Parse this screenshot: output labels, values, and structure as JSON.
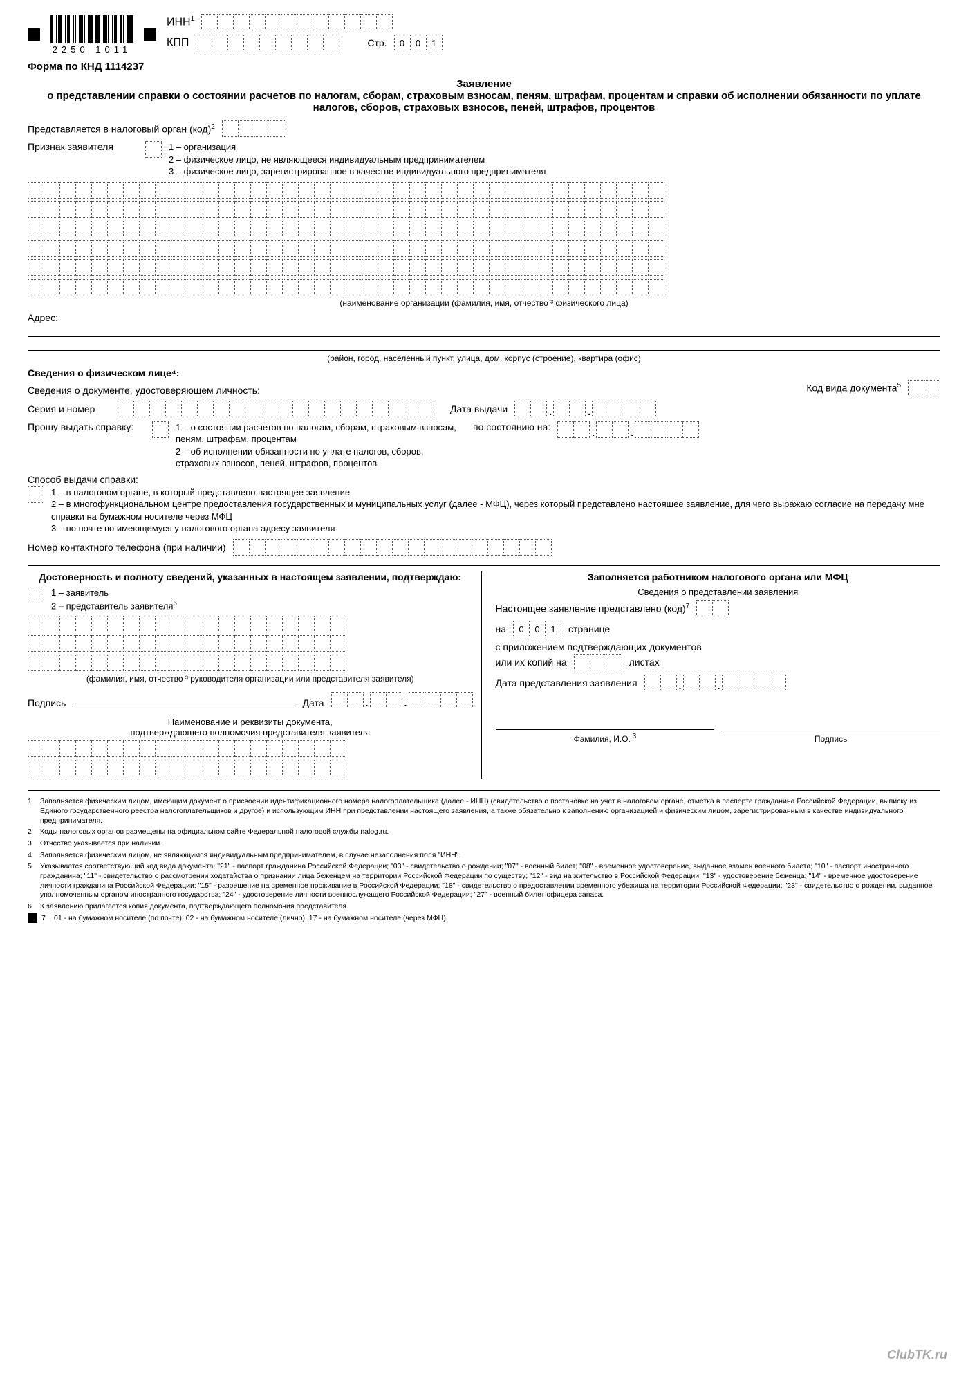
{
  "header": {
    "barcode_text": "2250 1011",
    "inn_label": "ИНН",
    "kpp_label": "КПП",
    "page_label": "Стр.",
    "page_value": [
      "0",
      "0",
      "1"
    ],
    "form_code": "Форма по КНД 1114237"
  },
  "title": "Заявление\nо представлении справки о состоянии расчетов по налогам, сборам, страховым взносам, пеням, штрафам, процентам и справки об исполнении обязанности по уплате налогов, сборов, страховых взносов, пеней, штрафов, процентов",
  "org_code_label": "Представляется в налоговый орган (код)",
  "applicant_type": {
    "label": "Признак заявителя",
    "options": [
      "1 – организация",
      "2 – физическое лицо, не являющееся индивидуальным предпринимателем",
      "3 – физическое лицо, зарегистрированное в качестве индивидуального предпринимателя"
    ]
  },
  "name_note": "(наименование организации (фамилия, имя, отчество ³ физического лица)",
  "address_label": "Адрес:",
  "address_note": "(район, город, населенный пункт, улица, дом, корпус (строение), квартира (офис)",
  "person_section": "Сведения о физическом лице⁴:",
  "id_doc_label": "Сведения о документе, удостоверяющем личность:",
  "doc_code_label": "Код вида документа",
  "series_label": "Серия и номер",
  "issue_date_label": "Дата выдачи",
  "request_label": "Прошу выдать справку:",
  "request_options": [
    "1 – о состоянии расчетов по налогам, сборам, страховым взносам, пеням, штрафам, процентам",
    "2 – об исполнении обязанности по уплате налогов, сборов, страховых взносов, пеней, штрафов, процентов"
  ],
  "as_of_label": "по состоянию на:",
  "delivery_label": "Способ выдачи справки:",
  "delivery_options": [
    "1 – в налоговом органе, в который представлено настоящее заявление",
    "2 – в многофункциональном центре предоставления государственных и муниципальных услуг (далее - МФЦ), через который представлено настоящее заявление, для чего выражаю согласие на передачу мне справки на бумажном носителе через МФЦ",
    "3 – по почте по имеющемуся у налогового органа адресу заявителя"
  ],
  "phone_label": "Номер контактного телефона (при наличии)",
  "left_col": {
    "title": "Достоверность и полноту сведений, указанных в настоящем заявлении, подтверждаю:",
    "opts": [
      "1 – заявитель",
      "2 – представитель заявителя"
    ],
    "fio_note": "(фамилия, имя, отчество ³  руководителя организации или представителя заявителя)",
    "sig_label": "Подпись",
    "date_label": "Дата",
    "doc_title": "Наименование и реквизиты документа,\nподтверждающего полномочия представителя заявителя"
  },
  "right_col": {
    "title": "Заполняется работником налогового органа или МФЦ",
    "subtitle": "Сведения о представлении заявления",
    "submitted_label": "Настоящее заявление представлено (код)",
    "on_label": "на",
    "pages_value": [
      "0",
      "0",
      "1"
    ],
    "pages_word": "странице",
    "attach_label": "с приложением подтверждающих документов",
    "or_copies": "или их копий на",
    "sheets_word": "листах",
    "submit_date": "Дата представления заявления",
    "fio_label": "Фамилия, И.О.",
    "sig_label": "Подпись"
  },
  "footnotes": [
    "Заполняется физическим лицом, имеющим документ о присвоении идентификационного номера налогоплательщика (далее - ИНН) (свидетельство о постановке на учет в налоговом органе, отметка в паспорте гражданина Российской Федерации, выписку из Единого государственного реестра налогоплательщиков и другое) и использующим ИНН при представлении настоящего заявления, а также обязательно к заполнению организацией и физическим лицом, зарегистрированным в качестве индивидуального предпринимателя.",
    "Коды налоговых органов размещены на официальном сайте Федеральной налоговой службы nalog.ru.",
    "Отчество указывается при наличии.",
    "Заполняется физическим лицом, не являющимся индивидуальным предпринимателем, в случае незаполнения поля \"ИНН\".",
    "Указывается соответствующий код вида документа: \"21\" - паспорт гражданина Российской Федерации; \"03\" - свидетельство о рождении; \"07\" - военный билет; \"08\" - временное удостоверение, выданное взамен военного билета; \"10\" - паспорт иностранного гражданина; \"11\" - свидетельство о рассмотрении ходатайства о признании лица беженцем на территории Российской Федерации по существу; \"12\" - вид на жительство в Российской Федерации; \"13\" - удостоверение беженца; \"14\" - временное удостоверение личности гражданина Российской Федерации; \"15\" - разрешение на временное проживание в Российской Федерации; \"18\" - свидетельство о предоставлении временного убежища на территории Российской Федерации; \"23\" - свидетельство о рождении, выданное уполномоченным органом иностранного государства; \"24\" - удостоверение личности военнослужащего Российской Федерации; \"27\" - военный билет офицера запаса.",
    "К заявлению прилагается копия документа, подтверждающего полномочия представителя.",
    "01 - на бумажном носителе (по почте); 02 - на бумажном носителе (лично); 17 - на бумажном носителе (через МФЦ)."
  ],
  "watermark": "ClubTK.ru",
  "cell_counts": {
    "inn": 12,
    "kpp": 9,
    "org_code": 4,
    "applicant": 1,
    "name_row": 40,
    "doc_code": 2,
    "series": 20,
    "date8": 8,
    "request": 1,
    "delivery": 1,
    "phone": 20,
    "confirm": 1,
    "fio_row": 20,
    "pages3": 3,
    "sheets": 3,
    "code2": 2
  }
}
